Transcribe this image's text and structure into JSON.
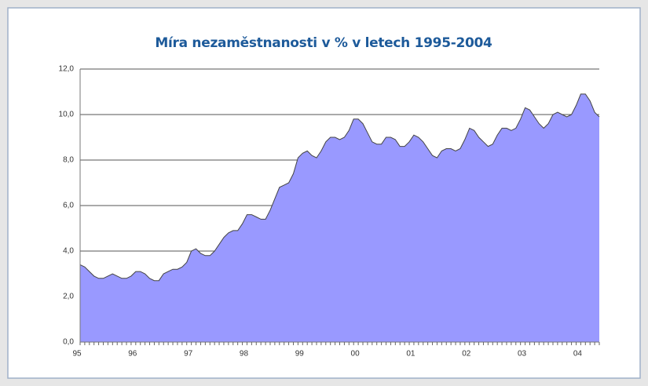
{
  "chart_data": {
    "type": "area",
    "title": "Míra nezaměstnanosti v % v letech 1995-2004",
    "categories": [
      "95",
      null,
      null,
      null,
      null,
      null,
      null,
      null,
      null,
      null,
      null,
      null,
      "96",
      null,
      null,
      null,
      null,
      null,
      null,
      null,
      null,
      null,
      null,
      null,
      "97",
      null,
      null,
      null,
      null,
      null,
      null,
      null,
      null,
      null,
      null,
      null,
      "98",
      null,
      null,
      null,
      null,
      null,
      null,
      null,
      null,
      null,
      null,
      null,
      "99",
      null,
      null,
      null,
      null,
      null,
      null,
      null,
      null,
      null,
      null,
      null,
      "00",
      null,
      null,
      null,
      null,
      null,
      null,
      null,
      null,
      null,
      null,
      null,
      "01",
      null,
      null,
      null,
      null,
      null,
      null,
      null,
      null,
      null,
      null,
      null,
      "02",
      null,
      null,
      null,
      null,
      null,
      null,
      null,
      null,
      null,
      null,
      null,
      "03",
      null,
      null,
      null,
      null,
      null,
      null,
      null,
      null,
      null,
      null,
      null,
      "04",
      null,
      null,
      null,
      null
    ],
    "values": [
      3.4,
      3.3,
      3.1,
      2.9,
      2.8,
      2.8,
      2.9,
      3.0,
      2.9,
      2.8,
      2.8,
      2.9,
      3.1,
      3.1,
      3.0,
      2.8,
      2.7,
      2.7,
      3.0,
      3.1,
      3.2,
      3.2,
      3.3,
      3.5,
      4.0,
      4.1,
      3.9,
      3.8,
      3.8,
      4.0,
      4.3,
      4.6,
      4.8,
      4.9,
      4.9,
      5.2,
      5.6,
      5.6,
      5.5,
      5.4,
      5.4,
      5.8,
      6.3,
      6.8,
      6.9,
      7.0,
      7.4,
      8.1,
      8.3,
      8.4,
      8.2,
      8.1,
      8.4,
      8.8,
      9.0,
      9.0,
      8.9,
      9.0,
      9.3,
      9.8,
      9.8,
      9.6,
      9.2,
      8.8,
      8.7,
      8.7,
      9.0,
      9.0,
      8.9,
      8.6,
      8.6,
      8.8,
      9.1,
      9.0,
      8.8,
      8.5,
      8.2,
      8.1,
      8.4,
      8.5,
      8.5,
      8.4,
      8.5,
      8.9,
      9.4,
      9.3,
      9.0,
      8.8,
      8.6,
      8.7,
      9.1,
      9.4,
      9.4,
      9.3,
      9.4,
      9.8,
      10.3,
      10.2,
      9.9,
      9.6,
      9.4,
      9.6,
      10.0,
      10.1,
      10.0,
      9.9,
      10.0,
      10.4,
      10.9,
      10.9,
      10.6,
      10.1,
      9.9
    ],
    "color": "#9999ff",
    "ylim": [
      0,
      12
    ],
    "yticks": [
      {
        "value": 0,
        "label": "0,0"
      },
      {
        "value": 2,
        "label": "2,0"
      },
      {
        "value": 4,
        "label": "4,0"
      },
      {
        "value": 6,
        "label": "6,0"
      },
      {
        "value": 8,
        "label": "8,0"
      },
      {
        "value": 10,
        "label": "10,0"
      },
      {
        "value": 12,
        "label": "12,0"
      }
    ],
    "grid": true
  }
}
